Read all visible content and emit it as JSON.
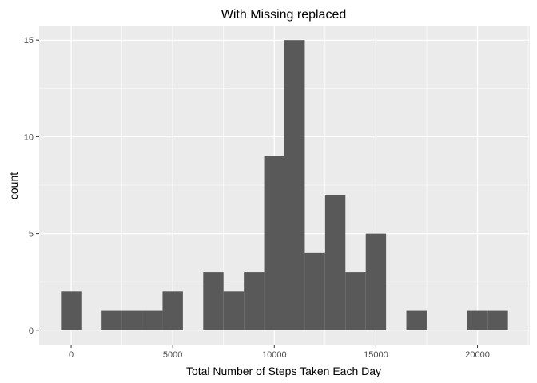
{
  "chart_data": {
    "type": "bar",
    "title": "With Missing replaced",
    "xlabel": "Total Number of Steps Taken Each Day",
    "ylabel": "count",
    "bin_width": 1000,
    "bins": [
      {
        "x": 0,
        "count": 2
      },
      {
        "x": 2000,
        "count": 1
      },
      {
        "x": 3000,
        "count": 1
      },
      {
        "x": 4000,
        "count": 1
      },
      {
        "x": 5000,
        "count": 2
      },
      {
        "x": 7000,
        "count": 3
      },
      {
        "x": 8000,
        "count": 2
      },
      {
        "x": 9000,
        "count": 3
      },
      {
        "x": 10000,
        "count": 9
      },
      {
        "x": 11000,
        "count": 15
      },
      {
        "x": 12000,
        "count": 4
      },
      {
        "x": 13000,
        "count": 7
      },
      {
        "x": 14000,
        "count": 3
      },
      {
        "x": 15000,
        "count": 5
      },
      {
        "x": 17000,
        "count": 1
      },
      {
        "x": 20000,
        "count": 1
      },
      {
        "x": 21000,
        "count": 1
      }
    ],
    "xlim": [
      -1575,
      22575
    ],
    "ylim": [
      -0.75,
      15.75
    ],
    "x_ticks": [
      0,
      5000,
      10000,
      15000,
      20000
    ],
    "x_tick_labels": [
      "0",
      "5000",
      "10000",
      "15000",
      "20000"
    ],
    "y_ticks": [
      0,
      5,
      10,
      15
    ],
    "y_tick_labels": [
      "0",
      "5",
      "10",
      "15"
    ],
    "grid": true,
    "colors": {
      "panel": "#ebebeb",
      "grid": "#ffffff",
      "bar": "#595959"
    }
  }
}
